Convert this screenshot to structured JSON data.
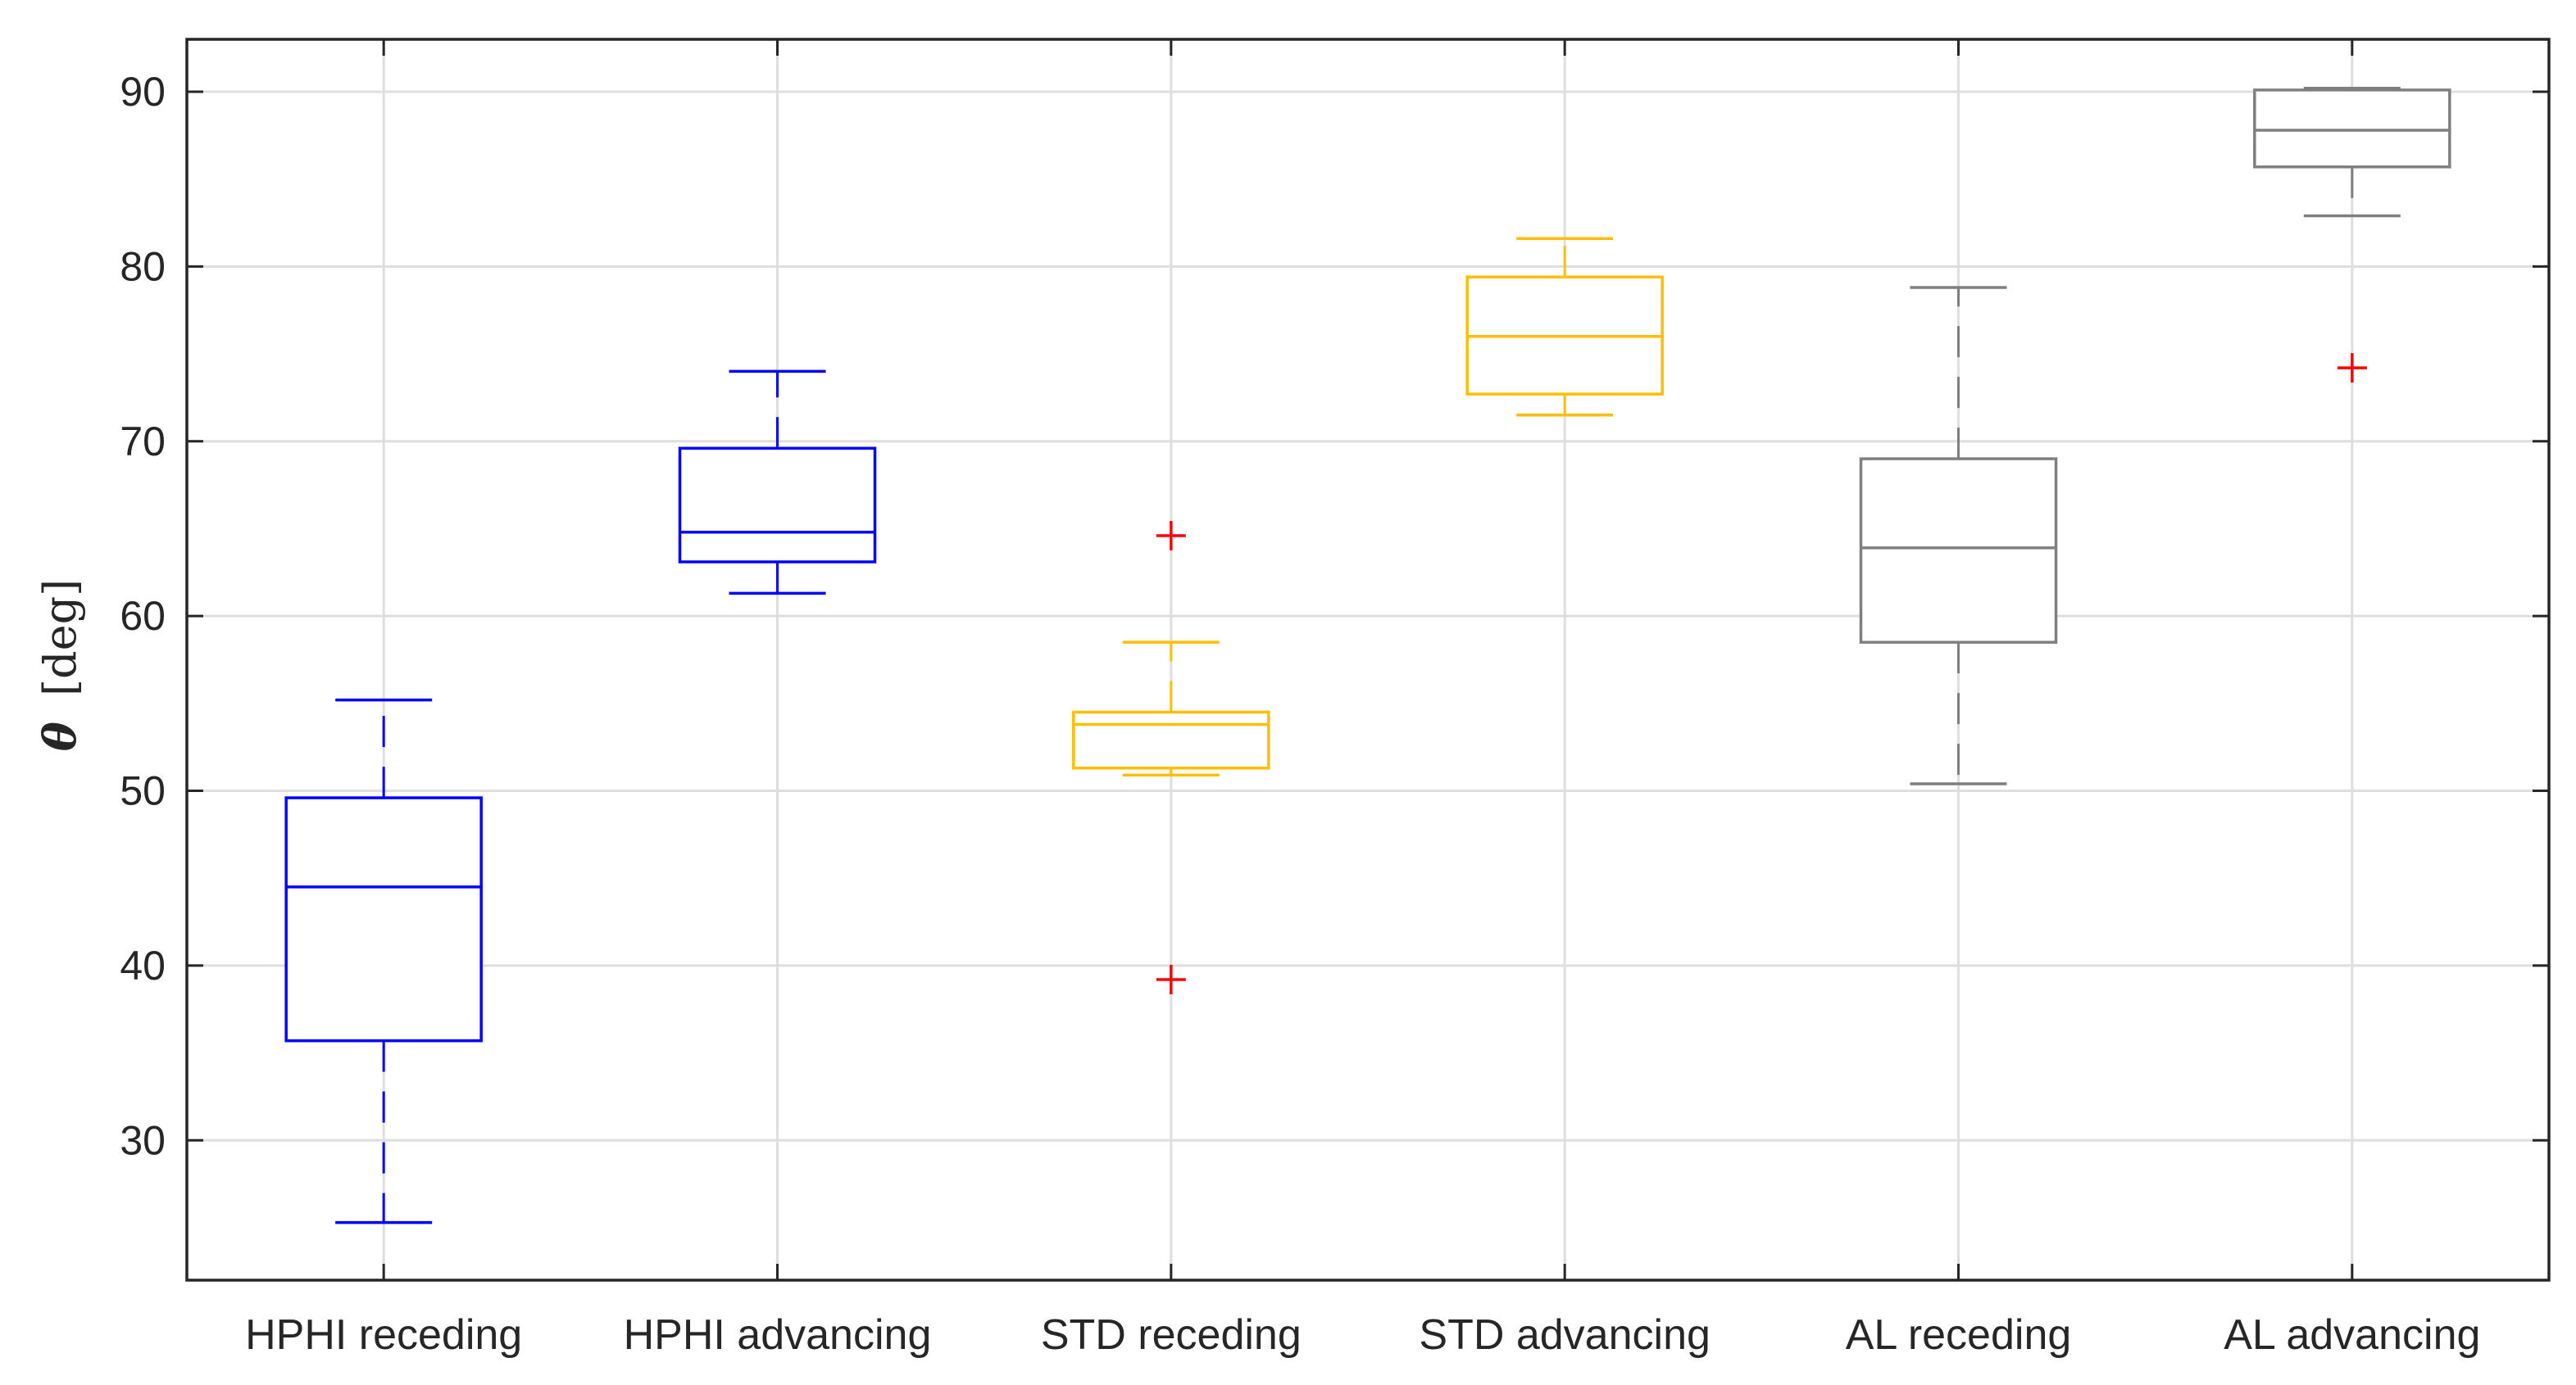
{
  "chart_data": {
    "type": "box",
    "title": "",
    "xlabel": "",
    "ylabel": {
      "symbol": "θ",
      "unit": "[deg]"
    },
    "ylim": [
      22,
      93
    ],
    "yticks": [
      30,
      40,
      50,
      60,
      70,
      80,
      90
    ],
    "grid": true,
    "colors": {
      "blue": "#0000ff",
      "yellow": "#ffbe00",
      "gray": "#7f7f7f",
      "outlier": "#ff0000",
      "grid": "#dedede",
      "axis": "#262626"
    },
    "categories": [
      "HPHI receding",
      "HPHI advancing",
      "STD receding",
      "STD advancing",
      "AL receding",
      "AL advancing"
    ],
    "boxes": [
      {
        "category": "HPHI receding",
        "color": "blue",
        "whisker_low": 25.3,
        "q1": 35.7,
        "median": 44.5,
        "q3": 49.6,
        "whisker_high": 55.2,
        "outliers": []
      },
      {
        "category": "HPHI advancing",
        "color": "blue",
        "whisker_low": 61.3,
        "q1": 63.1,
        "median": 64.8,
        "q3": 69.6,
        "whisker_high": 74.0,
        "outliers": []
      },
      {
        "category": "STD receding",
        "color": "yellow",
        "whisker_low": 50.9,
        "q1": 51.3,
        "median": 53.8,
        "q3": 54.5,
        "whisker_high": 58.5,
        "outliers": [
          64.6,
          39.2
        ]
      },
      {
        "category": "STD advancing",
        "color": "yellow",
        "whisker_low": 71.5,
        "q1": 72.7,
        "median": 76.0,
        "q3": 79.4,
        "whisker_high": 81.6,
        "outliers": []
      },
      {
        "category": "AL receding",
        "color": "gray",
        "whisker_low": 50.4,
        "q1": 58.5,
        "median": 63.9,
        "q3": 69.0,
        "whisker_high": 78.8,
        "outliers": []
      },
      {
        "category": "AL advancing",
        "color": "gray",
        "whisker_low": 82.9,
        "q1": 85.7,
        "median": 87.8,
        "q3": 90.1,
        "whisker_high": 90.2,
        "outliers": [
          74.2
        ]
      }
    ]
  }
}
